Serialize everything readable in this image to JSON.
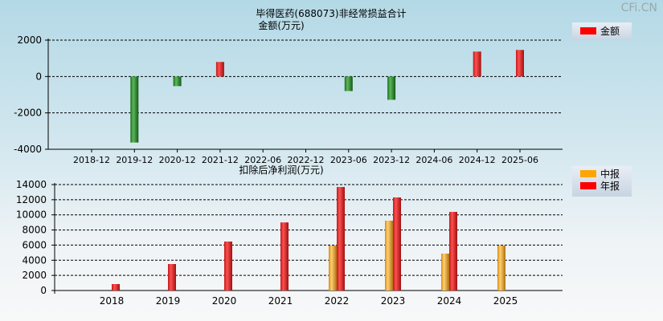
{
  "watermark": "CFi.CN",
  "chart_data": [
    {
      "type": "bar",
      "title": "毕得医药(688073)非经常损益合计",
      "ylabel": "金额(万元)",
      "categories": [
        "2018-12",
        "2019-12",
        "2020-12",
        "2021-12",
        "2022-06",
        "2022-12",
        "2023-06",
        "2023-12",
        "2024-06",
        "2024-12",
        "2025-06"
      ],
      "series": [
        {
          "name": "金额",
          "values": [
            null,
            -3630,
            -530,
            800,
            null,
            null,
            -800,
            -1280,
            null,
            1370,
            1460
          ]
        }
      ],
      "ylim": [
        -4000,
        2000
      ],
      "yticks": [
        2000,
        0,
        -2000,
        -4000
      ],
      "grid": true,
      "legend": "top-right",
      "colors": {
        "positive": "#ee2222",
        "negative": "#228b22"
      }
    },
    {
      "type": "bar",
      "title": "扣除后净利润(万元)",
      "categories": [
        "2018",
        "2019",
        "2020",
        "2021",
        "2022",
        "2023",
        "2024",
        "2025"
      ],
      "series": [
        {
          "name": "中报",
          "values": [
            null,
            null,
            null,
            null,
            5940,
            9230,
            4880,
            5940
          ],
          "color": "#f5a623"
        },
        {
          "name": "年报",
          "values": [
            850,
            3500,
            6470,
            9000,
            13680,
            12300,
            10390,
            null
          ],
          "color": "#ee2222"
        }
      ],
      "ylim": [
        0,
        14000
      ],
      "yticks": [
        0,
        2000,
        4000,
        6000,
        8000,
        10000,
        12000,
        14000
      ],
      "grid": true,
      "legend": "top-right"
    }
  ]
}
